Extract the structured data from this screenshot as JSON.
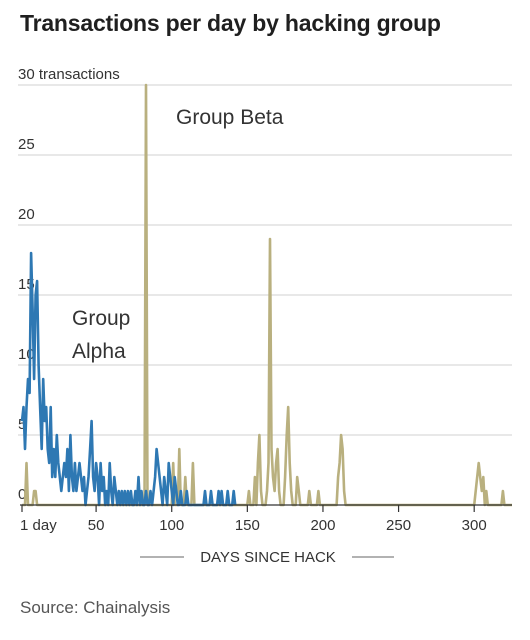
{
  "title": "Transactions per day by hacking group",
  "source": "Source: Chainalysis",
  "chart_data": {
    "type": "line",
    "title": "Transactions per day by hacking group",
    "xlabel": "DAYS SINCE HACK",
    "ylabel": "",
    "xlim": [
      1,
      325
    ],
    "ylim": [
      0,
      30
    ],
    "x_ticks": [
      1,
      50,
      100,
      150,
      200,
      250,
      300
    ],
    "x_tick_labels": [
      "1 day",
      "50",
      "100",
      "150",
      "200",
      "250",
      "300"
    ],
    "y_ticks": [
      0,
      5,
      10,
      15,
      20,
      25,
      30
    ],
    "y_tick_labels": [
      "0",
      "5",
      "10",
      "15",
      "20",
      "25",
      "30 transactions"
    ],
    "grid": true,
    "series": [
      {
        "name": "Group Beta",
        "label_lines": [
          "Group Beta"
        ],
        "color": "#b9b07f",
        "points": [
          [
            1,
            0
          ],
          [
            3,
            0
          ],
          [
            4,
            3
          ],
          [
            5,
            0
          ],
          [
            8,
            0
          ],
          [
            9,
            1
          ],
          [
            10,
            1
          ],
          [
            11,
            0
          ],
          [
            82,
            0
          ],
          [
            83,
            30
          ],
          [
            84,
            0
          ],
          [
            100,
            0
          ],
          [
            101,
            3
          ],
          [
            102,
            0
          ],
          [
            104,
            0
          ],
          [
            105,
            4
          ],
          [
            106,
            0
          ],
          [
            108,
            0
          ],
          [
            109,
            2
          ],
          [
            110,
            0
          ],
          [
            113,
            0
          ],
          [
            114,
            3
          ],
          [
            115,
            0
          ],
          [
            150,
            0
          ],
          [
            151,
            1
          ],
          [
            152,
            0
          ],
          [
            154,
            0
          ],
          [
            155,
            2
          ],
          [
            156,
            0
          ],
          [
            157,
            3
          ],
          [
            158,
            5
          ],
          [
            159,
            1
          ],
          [
            160,
            0
          ],
          [
            162,
            0
          ],
          [
            163,
            1
          ],
          [
            164,
            3
          ],
          [
            165,
            19
          ],
          [
            166,
            4
          ],
          [
            167,
            2
          ],
          [
            168,
            1
          ],
          [
            169,
            3
          ],
          [
            170,
            4
          ],
          [
            171,
            1
          ],
          [
            172,
            0
          ],
          [
            174,
            0
          ],
          [
            175,
            2
          ],
          [
            176,
            5
          ],
          [
            177,
            7
          ],
          [
            178,
            3
          ],
          [
            179,
            1
          ],
          [
            180,
            0
          ],
          [
            182,
            0
          ],
          [
            183,
            2
          ],
          [
            184,
            1
          ],
          [
            185,
            0
          ],
          [
            190,
            0
          ],
          [
            191,
            1
          ],
          [
            192,
            0
          ],
          [
            196,
            0
          ],
          [
            197,
            1
          ],
          [
            198,
            0
          ],
          [
            209,
            0
          ],
          [
            210,
            2
          ],
          [
            211,
            3
          ],
          [
            212,
            5
          ],
          [
            213,
            4
          ],
          [
            214,
            1
          ],
          [
            215,
            0
          ],
          [
            300,
            0
          ],
          [
            301,
            1
          ],
          [
            302,
            2
          ],
          [
            303,
            3
          ],
          [
            304,
            2
          ],
          [
            305,
            1
          ],
          [
            306,
            2
          ],
          [
            307,
            0
          ],
          [
            308,
            1
          ],
          [
            309,
            0
          ],
          [
            318,
            0
          ],
          [
            319,
            1
          ],
          [
            320,
            0
          ],
          [
            325,
            0
          ]
        ]
      },
      {
        "name": "Group Alpha",
        "label_lines": [
          "Group",
          "Alpha"
        ],
        "color": "#2e78b3",
        "values": [
          6,
          7,
          4,
          7,
          9,
          8,
          18,
          14,
          9,
          15,
          16,
          10,
          7,
          4,
          9,
          6,
          7,
          4,
          3,
          7,
          2,
          4,
          2,
          5,
          3,
          2,
          1,
          2,
          3,
          2,
          4,
          1,
          5,
          2,
          1,
          3,
          1,
          2,
          3,
          2,
          1,
          2,
          0,
          1,
          2,
          4,
          6,
          2,
          1,
          3,
          2,
          0,
          3,
          1,
          2,
          0,
          1,
          0,
          3,
          1,
          0,
          2,
          1,
          0,
          1,
          0,
          1,
          0,
          1,
          0,
          1,
          0,
          1,
          0,
          0,
          1,
          0,
          2,
          0,
          1,
          0,
          0,
          1,
          0,
          0,
          1,
          0,
          1,
          2,
          4,
          3,
          2,
          1,
          0,
          2,
          1,
          0,
          3,
          2,
          1,
          0,
          2,
          1,
          0,
          0,
          1,
          0,
          0,
          0,
          1,
          0,
          0,
          0,
          0,
          0,
          0,
          0,
          0,
          0,
          0,
          0,
          1,
          0,
          0,
          0,
          1,
          0,
          0,
          0,
          0,
          1,
          0,
          1,
          0,
          0,
          0,
          1,
          0,
          0,
          0,
          1,
          0
        ]
      }
    ]
  }
}
